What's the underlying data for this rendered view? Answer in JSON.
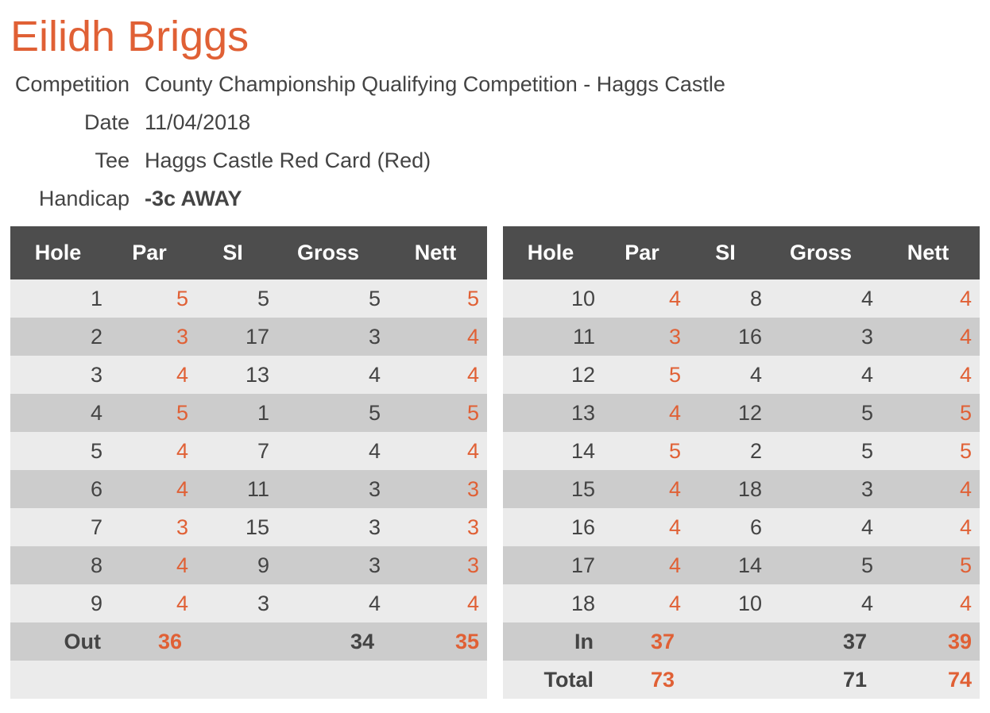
{
  "player": {
    "name": "Eilidh Briggs"
  },
  "info": [
    {
      "label": "Competition",
      "value": "County Championship Qualifying Competition - Haggs Castle",
      "bold": false
    },
    {
      "label": "Date",
      "value": "11/04/2018",
      "bold": false
    },
    {
      "label": "Tee",
      "value": "Haggs Castle Red Card (Red)",
      "bold": false
    },
    {
      "label": "Handicap",
      "value": "-3c AWAY",
      "bold": true
    }
  ],
  "headers": [
    "Hole",
    "Par",
    "SI",
    "Gross",
    "Nett"
  ],
  "colors": {
    "accent": "#e06035",
    "header_bg": "#4d4d4d",
    "row_light": "#ebebeb",
    "row_dark": "#cccccc",
    "text": "#444444"
  },
  "front_nine": {
    "holes": [
      {
        "hole": "1",
        "par": "5",
        "si": "5",
        "gross": "5",
        "nett": "5"
      },
      {
        "hole": "2",
        "par": "3",
        "si": "17",
        "gross": "3",
        "nett": "4"
      },
      {
        "hole": "3",
        "par": "4",
        "si": "13",
        "gross": "4",
        "nett": "4"
      },
      {
        "hole": "4",
        "par": "5",
        "si": "1",
        "gross": "5",
        "nett": "5"
      },
      {
        "hole": "5",
        "par": "4",
        "si": "7",
        "gross": "4",
        "nett": "4"
      },
      {
        "hole": "6",
        "par": "4",
        "si": "11",
        "gross": "3",
        "nett": "3"
      },
      {
        "hole": "7",
        "par": "3",
        "si": "15",
        "gross": "3",
        "nett": "3"
      },
      {
        "hole": "8",
        "par": "4",
        "si": "9",
        "gross": "3",
        "nett": "3"
      },
      {
        "hole": "9",
        "par": "4",
        "si": "3",
        "gross": "4",
        "nett": "4"
      }
    ],
    "totals": [
      {
        "label": "Out",
        "par": "36",
        "gross": "34",
        "nett": "35"
      },
      {
        "label": "",
        "par": "",
        "gross": "",
        "nett": ""
      }
    ]
  },
  "back_nine": {
    "holes": [
      {
        "hole": "10",
        "par": "4",
        "si": "8",
        "gross": "4",
        "nett": "4"
      },
      {
        "hole": "11",
        "par": "3",
        "si": "16",
        "gross": "3",
        "nett": "4"
      },
      {
        "hole": "12",
        "par": "5",
        "si": "4",
        "gross": "4",
        "nett": "4"
      },
      {
        "hole": "13",
        "par": "4",
        "si": "12",
        "gross": "5",
        "nett": "5"
      },
      {
        "hole": "14",
        "par": "5",
        "si": "2",
        "gross": "5",
        "nett": "5"
      },
      {
        "hole": "15",
        "par": "4",
        "si": "18",
        "gross": "3",
        "nett": "4"
      },
      {
        "hole": "16",
        "par": "4",
        "si": "6",
        "gross": "4",
        "nett": "4"
      },
      {
        "hole": "17",
        "par": "4",
        "si": "14",
        "gross": "5",
        "nett": "5"
      },
      {
        "hole": "18",
        "par": "4",
        "si": "10",
        "gross": "4",
        "nett": "4"
      }
    ],
    "totals": [
      {
        "label": "In",
        "par": "37",
        "gross": "37",
        "nett": "39"
      },
      {
        "label": "Total",
        "par": "73",
        "gross": "71",
        "nett": "74"
      }
    ]
  }
}
